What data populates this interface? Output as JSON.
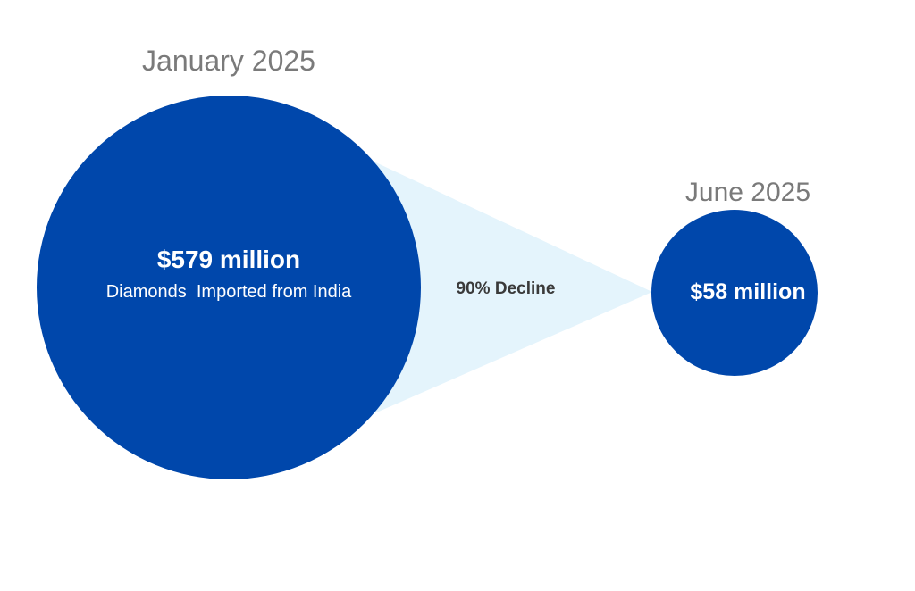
{
  "chart_data": {
    "type": "proportional-bubble",
    "series": [
      {
        "period": "January 2025",
        "value_text": "$579 million",
        "value": 579,
        "unit": "million USD",
        "description": "Diamonds  Imported from India"
      },
      {
        "period": "June 2025",
        "value_text": "$58 million",
        "value": 58,
        "unit": "million USD",
        "description": ""
      }
    ],
    "change_label": "90% Decline",
    "colors": {
      "bubble": "#0047AB",
      "connector": "#E4F4FC",
      "period_label": "#7A7A7A",
      "value_label": "#FFFFFF",
      "change_label": "#3A3A3A"
    }
  }
}
